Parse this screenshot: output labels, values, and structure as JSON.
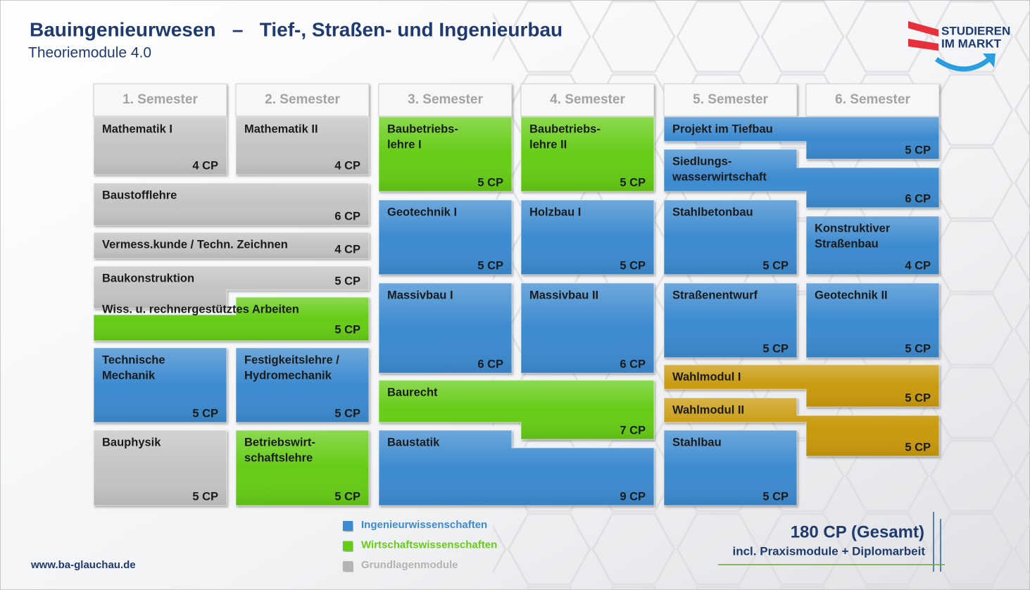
{
  "header": {
    "title": "Bauingenieurwesen   –   Tief-, Straßen- und Ingenieurbau",
    "subtitle": "Theoriemodule 4.0"
  },
  "logo": {
    "lines": [
      "STUDIEREN",
      "IM MARKT"
    ]
  },
  "semesters": [
    "1. Semester",
    "2. Semester",
    "3. Semester",
    "4. Semester",
    "5. Semester",
    "6. Semester"
  ],
  "modules": [
    {
      "name": [
        "Mathematik I"
      ],
      "cp": "4 CP",
      "color": "#c4c4c4"
    },
    {
      "name": [
        "Mathematik II"
      ],
      "cp": "4 CP",
      "color": "#c4c4c4"
    },
    {
      "name": [
        "Baustofflehre"
      ],
      "cp": "6 CP",
      "color": "#c4c4c4"
    },
    {
      "name": [
        "Vermess.kunde / Techn. Zeichnen"
      ],
      "cp": "4 CP",
      "color": "#c4c4c4"
    },
    {
      "name": [
        "Baukonstruktion"
      ],
      "cp": "5 CP",
      "color": "#c4c4c4"
    },
    {
      "name": [
        "Wiss. u. rechnergestütztes Arbeiten"
      ],
      "cp": "5 CP",
      "color": "#66cc14"
    },
    {
      "name": [
        "Technische",
        "Mechanik"
      ],
      "cp": "5 CP",
      "color": "#3c8bd0"
    },
    {
      "name": [
        "Festigkeitslehre /",
        "Hydromechanik"
      ],
      "cp": "5 CP",
      "color": "#3c8bd0"
    },
    {
      "name": [
        "Bauphysik"
      ],
      "cp": "5 CP",
      "color": "#c4c4c4"
    },
    {
      "name": [
        "Betriebswirt-",
        "schaftslehre"
      ],
      "cp": "5 CP",
      "color": "#66cc14"
    },
    {
      "name": [
        "Baubetriebs-",
        "lehre I"
      ],
      "cp": "5 CP",
      "color": "#66cc14"
    },
    {
      "name": [
        "Baubetriebs-",
        "lehre II"
      ],
      "cp": "5 CP",
      "color": "#66cc14"
    },
    {
      "name": [
        "Geotechnik I"
      ],
      "cp": "5 CP",
      "color": "#3c8bd0"
    },
    {
      "name": [
        "Holzbau I"
      ],
      "cp": "5 CP",
      "color": "#3c8bd0"
    },
    {
      "name": [
        "Massivbau I"
      ],
      "cp": "6 CP",
      "color": "#3c8bd0"
    },
    {
      "name": [
        "Massivbau II"
      ],
      "cp": "6 CP",
      "color": "#3c8bd0"
    },
    {
      "name": [
        "Baurecht"
      ],
      "cp": "7 CP",
      "color": "#66cc14"
    },
    {
      "name": [
        "Baustatik"
      ],
      "cp": "9 CP",
      "color": "#3c8bd0"
    },
    {
      "name": [
        "Projekt im Tiefbau"
      ],
      "cp": "5 CP",
      "color": "#3c8bd0"
    },
    {
      "name": [
        "Siedlungs-",
        "wasserwirtschaft"
      ],
      "cp": "6 CP",
      "color": "#3c8bd0"
    },
    {
      "name": [
        "Stahlbetonbau"
      ],
      "cp": "5 CP",
      "color": "#3c8bd0"
    },
    {
      "name": [
        "Konstruktiver",
        "Straßenbau"
      ],
      "cp": "4 CP",
      "color": "#3c8bd0"
    },
    {
      "name": [
        "Straßenentwurf"
      ],
      "cp": "5 CP",
      "color": "#3c8bd0"
    },
    {
      "name": [
        "Geotechnik II"
      ],
      "cp": "5 CP",
      "color": "#3c8bd0"
    },
    {
      "name": [
        "Wahlmodul I"
      ],
      "cp": "5 CP",
      "color": "#c99a10"
    },
    {
      "name": [
        "Wahlmodul II"
      ],
      "cp": "5 CP",
      "color": "#c99a10"
    },
    {
      "name": [
        "Stahlbau"
      ],
      "cp": "5 CP",
      "color": "#3c8bd0"
    }
  ],
  "legend": [
    {
      "label": "Ingenieurwissenschaften",
      "color": "#3c8bd0"
    },
    {
      "label": "Wirtschaftswissenschaften",
      "color": "#66cc14"
    },
    {
      "label": "Grundlagenmodule",
      "color": "#b4b4b4"
    }
  ],
  "total": "180 CP (Gesamt)",
  "total_note": "incl. Praxismodule + Diplomarbeit",
  "website": "www.ba-glauchau.de"
}
